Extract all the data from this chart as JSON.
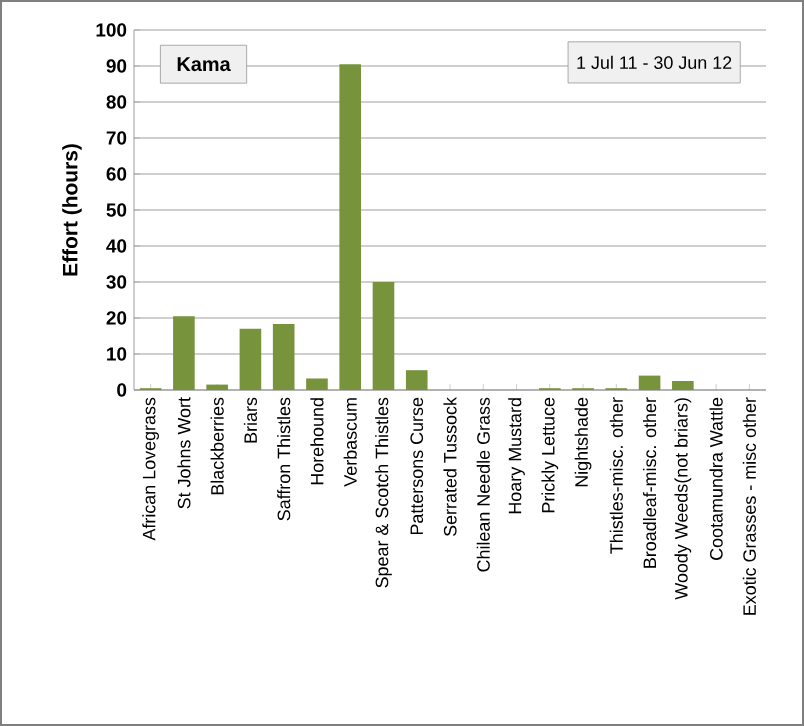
{
  "chart_data": {
    "type": "bar",
    "title": "Kama",
    "subtitle": "1 Jul 11  -  30 Jun 12",
    "ylabel": "Effort  (hours)",
    "categories": [
      "African Lovegrass",
      "St Johns Wort",
      "Blackberries",
      "Briars",
      "Saffron Thistles",
      "Horehound",
      "Verbascum",
      "Spear & Scotch Thistles",
      "Pattersons Curse",
      "Serrated Tussock",
      "Chilean Needle Grass",
      "Hoary Mustard",
      "Prickly Lettuce",
      "Nightshade",
      "Thistles-misc. other",
      "Broadleaf-misc. other",
      "Woody Weeds(not briars)",
      "Cootamundra Wattle",
      "Exotic Grasses - misc other"
    ],
    "values": [
      0.5,
      20.5,
      1.5,
      17,
      18.3,
      3.2,
      90.5,
      30,
      5.5,
      0,
      0,
      0,
      0.5,
      0.5,
      0.5,
      4,
      2.5,
      0,
      0
    ],
    "color": "#77933c",
    "ylim": [
      0,
      100
    ],
    "yticks": [
      0,
      10,
      20,
      30,
      40,
      50,
      60,
      70,
      80,
      90,
      100
    ],
    "grid": "y"
  }
}
